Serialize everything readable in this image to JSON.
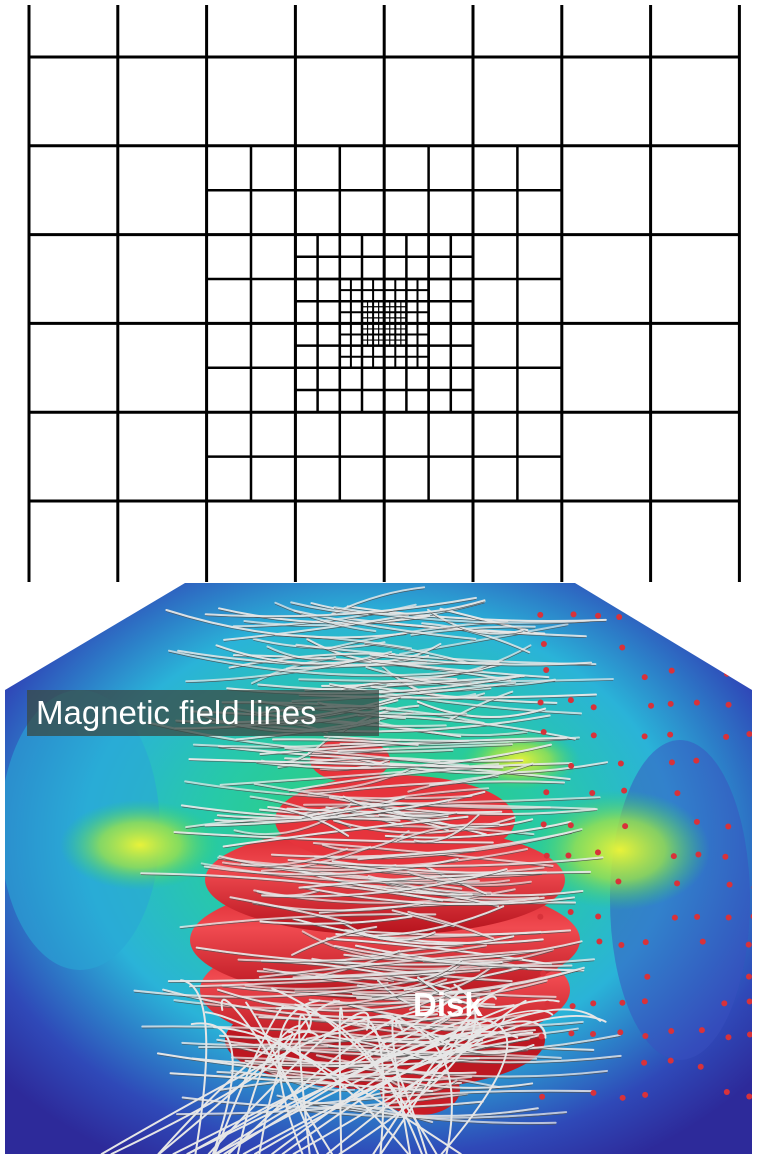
{
  "labels": {
    "field_lines": "Magnetic field lines",
    "disk": "Disk"
  }
}
